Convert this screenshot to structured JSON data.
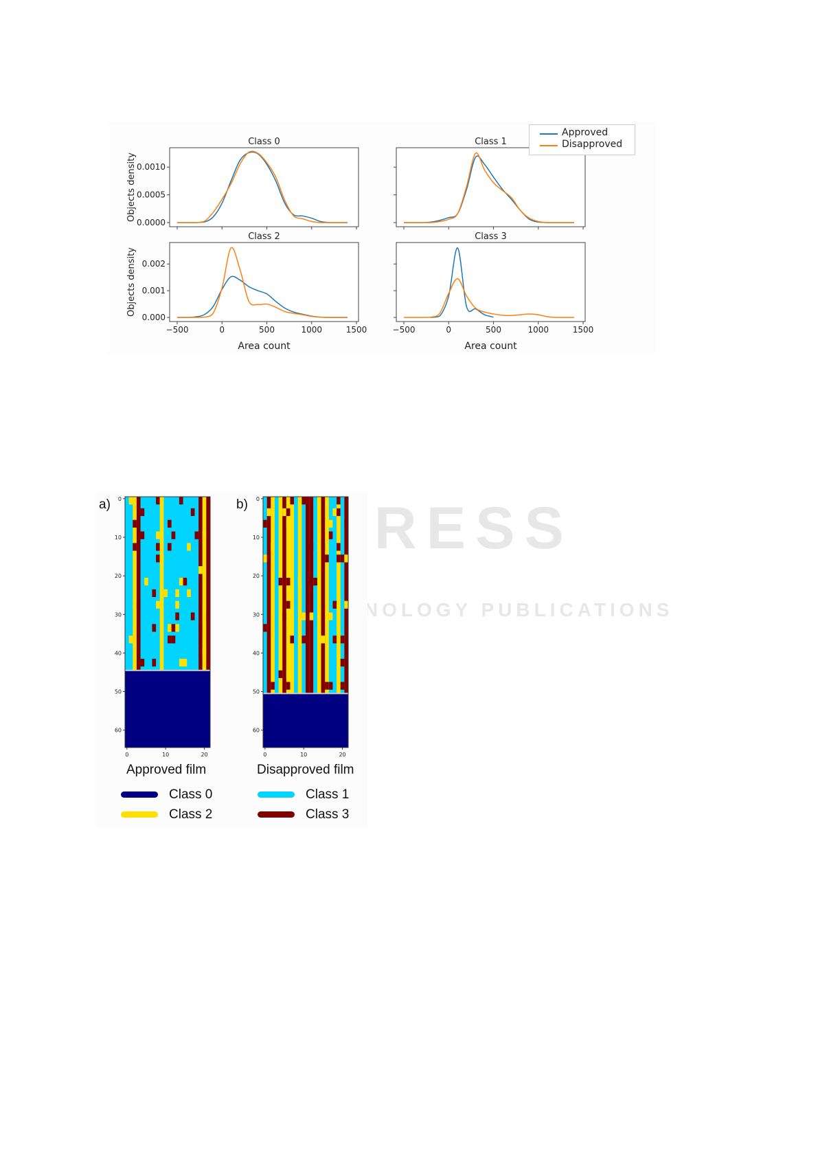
{
  "watermark": {
    "main": "SCITEPRESS",
    "sub": "SCIENCE AND TECHNOLOGY PUBLICATIONS"
  },
  "figure1": {
    "legend": {
      "approved": "Approved",
      "disapproved": "Disapproved"
    },
    "colors": {
      "approved": "#1f77b4",
      "disapproved": "#ff7f0e"
    }
  },
  "chart_data": [
    {
      "type": "line",
      "title": "Class   0",
      "xlabel": "",
      "ylabel": "Objects density",
      "xlim": [
        -500,
        1500
      ],
      "ylim": [
        0,
        0.0013
      ],
      "xticks": [
        "−500",
        "0",
        "500",
        "1000",
        "1500"
      ],
      "xticks_labeled": false,
      "yticks": [
        "0.0000",
        "0.0005",
        "0.0010"
      ],
      "x": [
        -500,
        -400,
        -300,
        -200,
        -100,
        0,
        100,
        200,
        300,
        400,
        500,
        600,
        700,
        800,
        900,
        1000,
        1100,
        1200,
        1300,
        1400
      ],
      "series": [
        {
          "name": "Approved",
          "values": [
            0,
            0,
            0,
            1e-05,
            0.0001,
            0.00035,
            0.00075,
            0.00112,
            0.00126,
            0.00124,
            0.00105,
            0.00075,
            0.00035,
            0.00014,
            0.00012,
            8e-05,
            2e-05,
            0,
            0,
            0
          ]
        },
        {
          "name": "Disapproved",
          "values": [
            0,
            0,
            0,
            2e-05,
            0.00018,
            0.00042,
            0.0007,
            0.00105,
            0.00127,
            0.00125,
            0.00108,
            0.00082,
            0.0004,
            0.00012,
            7e-05,
            2e-05,
            0,
            0,
            0,
            0
          ]
        }
      ]
    },
    {
      "type": "line",
      "title": "Class   1",
      "xlabel": "",
      "ylabel": "",
      "xlim": [
        -500,
        1500
      ],
      "ylim": [
        0,
        0.0013
      ],
      "xticks": [
        "−500",
        "0",
        "500",
        "1000",
        "1500"
      ],
      "xticks_labeled": false,
      "yticks": [],
      "x": [
        -500,
        -400,
        -300,
        -200,
        -100,
        0,
        100,
        200,
        300,
        400,
        500,
        600,
        700,
        800,
        900,
        1000,
        1100,
        1200,
        1300,
        1400
      ],
      "series": [
        {
          "name": "Approved",
          "values": [
            0,
            0,
            0,
            1e-05,
            4e-05,
            9e-05,
            0.00016,
            0.0006,
            0.00118,
            0.00105,
            0.00082,
            0.0006,
            0.00042,
            0.00022,
            6e-05,
            1e-05,
            0,
            0,
            0,
            0
          ]
        },
        {
          "name": "Disapproved",
          "values": [
            0,
            0,
            0,
            0,
            2e-05,
            6e-05,
            0.00016,
            0.00065,
            0.00125,
            0.00095,
            0.00072,
            0.00058,
            0.00045,
            0.00022,
            8e-05,
            2e-05,
            0,
            0,
            0,
            0
          ]
        }
      ]
    },
    {
      "type": "line",
      "title": "Class   2",
      "xlabel": "Area count",
      "ylabel": "Objects density",
      "xlim": [
        -500,
        1500
      ],
      "ylim": [
        0,
        0.0027
      ],
      "xticks": [
        "−500",
        "0",
        "500",
        "1000",
        "1500"
      ],
      "xticks_labeled": true,
      "yticks": [
        "0.000",
        "0.001",
        "0.002"
      ],
      "x": [
        -500,
        -400,
        -300,
        -200,
        -100,
        0,
        100,
        200,
        300,
        400,
        500,
        600,
        700,
        800,
        900,
        1000,
        1100,
        1200,
        1300,
        1400
      ],
      "series": [
        {
          "name": "Approved",
          "values": [
            0,
            0,
            2e-05,
            0.0001,
            0.0004,
            0.00105,
            0.00152,
            0.0014,
            0.00115,
            0.001,
            0.00088,
            0.0006,
            0.00035,
            0.0002,
            0.00012,
            5e-05,
            1e-05,
            0,
            0,
            0
          ]
        },
        {
          "name": "Disapproved",
          "values": [
            0,
            0,
            0,
            1e-05,
            0.00015,
            0.0011,
            0.0026,
            0.0018,
            0.0006,
            0.00048,
            0.0005,
            0.00038,
            0.00022,
            0.00015,
            0.0001,
            4e-05,
            1e-05,
            0,
            0,
            0
          ]
        }
      ]
    },
    {
      "type": "line",
      "title": "Class   3",
      "xlabel": "Area count",
      "ylabel": "",
      "xlim": [
        -500,
        1500
      ],
      "ylim": [
        0,
        0.0027
      ],
      "xticks": [
        "−500",
        "0",
        "500",
        "1000",
        "1500"
      ],
      "xticks_labeled": true,
      "yticks": [],
      "x": [
        -500,
        -400,
        -300,
        -200,
        -100,
        0,
        100,
        200,
        300,
        400,
        500,
        600,
        700,
        800,
        900,
        1000,
        1100,
        1200,
        1300,
        1400
      ],
      "series": [
        {
          "name": "Approved",
          "values": [
            null,
            null,
            null,
            0,
            5e-05,
            0.0008,
            0.0026,
            0.0004,
            0.00032,
            0.0001,
            1e-05,
            null,
            null,
            null,
            null,
            null,
            null,
            null,
            null,
            null
          ]
        },
        {
          "name": "Disapproved",
          "values": [
            0,
            0,
            0,
            1e-05,
            0.00015,
            0.0009,
            0.00145,
            0.0008,
            0.00035,
            0.0002,
            0.00013,
            8e-05,
            7e-05,
            0.0001,
            0.00013,
            0.0001,
            3e-05,
            0,
            0,
            0
          ]
        }
      ]
    },
    {
      "type": "heatmap",
      "panels": [
        {
          "label": "a)",
          "title": "Approved film",
          "rows": 65,
          "cols": 22,
          "filled_rows": 45
        },
        {
          "label": "b)",
          "title": "Disapproved film",
          "rows": 65,
          "cols": 22,
          "filled_rows": 51
        }
      ],
      "xticks": [
        "0",
        "10",
        "20"
      ],
      "yticks": [
        "0",
        "10",
        "20",
        "30",
        "40",
        "50",
        "60"
      ],
      "legend": [
        {
          "name": "Class 0",
          "color": "#000080"
        },
        {
          "name": "Class 1",
          "color": "#00d4ff"
        },
        {
          "name": "Class 2",
          "color": "#ffe000"
        },
        {
          "name": "Class 3",
          "color": "#800000"
        }
      ]
    }
  ]
}
